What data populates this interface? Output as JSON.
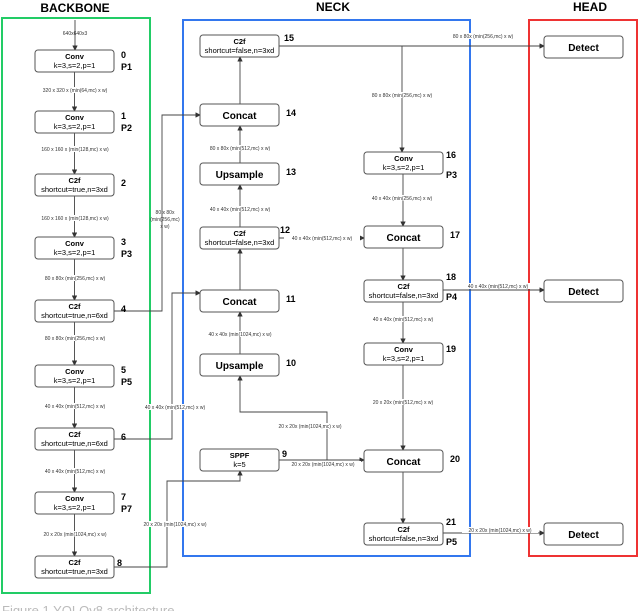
{
  "sections": {
    "backbone": "BACKBONE",
    "neck": "NECK",
    "head": "HEAD"
  },
  "colors": {
    "backbone": "#22cc66",
    "neck": "#3377ee",
    "head": "#ee3333",
    "node_border": "#555555",
    "edge": "#444444"
  },
  "input_label": "640x640x3",
  "nodes": [
    {
      "id": "0",
      "title": "Conv",
      "sub": "k=3,s=2,p=1",
      "num": "0",
      "p": "P1"
    },
    {
      "id": "1",
      "title": "Conv",
      "sub": "k=3,s=2,p=1",
      "num": "1",
      "p": "P2"
    },
    {
      "id": "2",
      "title": "C2f",
      "sub": "shortcut=true,n=3xd",
      "num": "2",
      "p": ""
    },
    {
      "id": "3",
      "title": "Conv",
      "sub": "k=3,s=2,p=1",
      "num": "3",
      "p": "P3"
    },
    {
      "id": "4",
      "title": "C2f",
      "sub": "shortcut=true,n=6xd",
      "num": "4",
      "p": ""
    },
    {
      "id": "5",
      "title": "Conv",
      "sub": "k=3,s=2,p=1",
      "num": "5",
      "p": "P5"
    },
    {
      "id": "6",
      "title": "C2f",
      "sub": "shortcut=true,n=6xd",
      "num": "6",
      "p": ""
    },
    {
      "id": "7",
      "title": "Conv",
      "sub": "k=3,s=2,p=1",
      "num": "7",
      "p": "P7"
    },
    {
      "id": "8",
      "title": "C2f",
      "sub": "shortcut=true,n=3xd",
      "num": "8",
      "p": ""
    },
    {
      "id": "9",
      "title": "SPPF",
      "sub": "k=5",
      "num": "9",
      "p": ""
    },
    {
      "id": "10",
      "title": "Upsample",
      "sub": "",
      "num": "10",
      "p": ""
    },
    {
      "id": "11",
      "title": "Concat",
      "sub": "",
      "num": "11",
      "p": ""
    },
    {
      "id": "12",
      "title": "C2f",
      "sub": "shortcut=false,n=3xd",
      "num": "12",
      "p": ""
    },
    {
      "id": "13",
      "title": "Upsample",
      "sub": "",
      "num": "13",
      "p": ""
    },
    {
      "id": "14",
      "title": "Concat",
      "sub": "",
      "num": "14",
      "p": ""
    },
    {
      "id": "15",
      "title": "C2f",
      "sub": "shortcut=false,n=3xd",
      "num": "15",
      "p": ""
    },
    {
      "id": "16",
      "title": "Conv",
      "sub": "k=3,s=2,p=1",
      "num": "16",
      "p": "P3"
    },
    {
      "id": "17",
      "title": "Concat",
      "sub": "",
      "num": "17",
      "p": ""
    },
    {
      "id": "18",
      "title": "C2f",
      "sub": "shortcut=false,n=3xd",
      "num": "18",
      "p": "P4"
    },
    {
      "id": "19",
      "title": "Conv",
      "sub": "k=3,s=2,p=1",
      "num": "19",
      "p": ""
    },
    {
      "id": "20",
      "title": "Concat",
      "sub": "",
      "num": "20",
      "p": ""
    },
    {
      "id": "21",
      "title": "C2f",
      "sub": "shortcut=false,n=3xd",
      "num": "21",
      "p": "P5"
    },
    {
      "id": "d1",
      "title": "Detect",
      "sub": "",
      "num": "",
      "p": ""
    },
    {
      "id": "d2",
      "title": "Detect",
      "sub": "",
      "num": "",
      "p": ""
    },
    {
      "id": "d3",
      "title": "Detect",
      "sub": "",
      "num": "",
      "p": ""
    }
  ],
  "edge_labels": [
    "320 x 320 x (min(64,mc) x w)",
    "160 x 160 x (min(128,mc) x w)",
    "160 x 160 x (min(128,mc) x w)",
    "80 x 80x (min(256,mc) x w)",
    "80 x 80x (min(256,mc) x w)",
    "40 x 40x (min(512,mc) x w)",
    "40 x 40x (min(512,mc) x w)",
    "20 x 20x (min(1024,mc) x w)",
    "80 x 80x (min(256,mc) x w)",
    "40 x 40x (min(512,mc) x w)",
    "20 x 20x (min(1024,mc) x w)",
    "20 x 20x (min(1024,mc) x w)",
    "20 x 20x (min(1024,mc) x w)",
    "40 x 40x (min(1024,mc) x w)",
    "40 x 40x (min(512,mc) x w)",
    "80 x 80x (min(512,mc) x w)",
    "80 x 80x (min(256,mc) x w)",
    "80 x 80x (min(256,mc) x w)",
    "40 x 40x (min(512,mc) x w)",
    "40 x 40x (min(256,mc) x w)",
    "40 x 40x (min(512,mc) x w)",
    "40 x 40x (min(512,mc) x w)",
    "20 x 20x (min(512,mc) x w)",
    "20 x 20x (min(1024,mc) x w)"
  ],
  "caption": "Figure 1 YOLOv8 architecture"
}
